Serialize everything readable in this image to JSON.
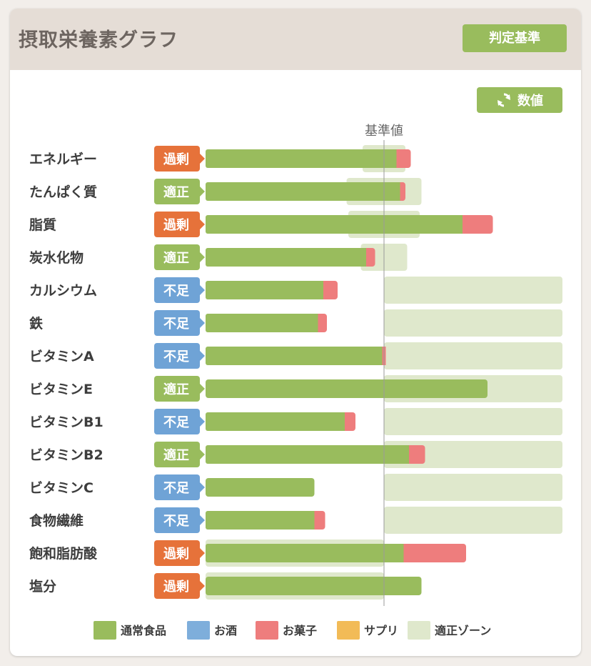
{
  "header": {
    "title": "摂取栄養素グラフ",
    "criteria_button": "判定基準"
  },
  "toolbar": {
    "values_button": "数値",
    "values_icon": "refresh-icon"
  },
  "colors": {
    "regular_food": "#99bc5d",
    "alcohol": "#7eaedb",
    "sweets": "#ee7d7d",
    "supplement": "#f2bb57",
    "optimal_zone": "#dfe8cc",
    "status_excess": "#e6723a",
    "status_optimal": "#99bc5d",
    "status_deficient": "#6fa3d6"
  },
  "chart_data": {
    "type": "bar",
    "orientation": "horizontal",
    "stacked": true,
    "baseline_label": "基準値",
    "baseline_value": 100,
    "x_range": [
      0,
      200
    ],
    "categories": [
      "エネルギー",
      "たんぱく質",
      "脂質",
      "炭水化物",
      "カルシウム",
      "鉄",
      "ビタミンA",
      "ビタミンE",
      "ビタミンB1",
      "ビタミンB2",
      "ビタミンC",
      "食物繊維",
      "飽和脂肪酸",
      "塩分"
    ],
    "status": [
      "過剰",
      "適正",
      "過剰",
      "適正",
      "不足",
      "不足",
      "不足",
      "適正",
      "不足",
      "適正",
      "不足",
      "不足",
      "過剰",
      "過剰"
    ],
    "series": [
      {
        "name": "通常食品",
        "values": [
          107,
          109,
          144,
          90,
          66,
          63,
          99,
          158,
          78,
          114,
          61,
          61,
          111,
          121
        ]
      },
      {
        "name": "お酒",
        "values": [
          0,
          0,
          0,
          0,
          0,
          0,
          0,
          0,
          0,
          0,
          0,
          0,
          0,
          0
        ]
      },
      {
        "name": "お菓子",
        "values": [
          8,
          3,
          17,
          5,
          8,
          5,
          2,
          0,
          6,
          9,
          0,
          6,
          35,
          0
        ]
      },
      {
        "name": "サプリ",
        "values": [
          0,
          0,
          0,
          0,
          0,
          0,
          0,
          0,
          0,
          0,
          0,
          0,
          0,
          0
        ]
      }
    ],
    "optimal_zone": [
      [
        88,
        112
      ],
      [
        79,
        121
      ],
      [
        80,
        120
      ],
      [
        87,
        113
      ],
      [
        100,
        200
      ],
      [
        100,
        200
      ],
      [
        100,
        200
      ],
      [
        100,
        200
      ],
      [
        100,
        200
      ],
      [
        100,
        200
      ],
      [
        100,
        200
      ],
      [
        100,
        200
      ],
      [
        0,
        100
      ],
      [
        0,
        100
      ]
    ],
    "legend": [
      "通常食品",
      "お酒",
      "お菓子",
      "サプリ",
      "適正ゾーン"
    ]
  }
}
